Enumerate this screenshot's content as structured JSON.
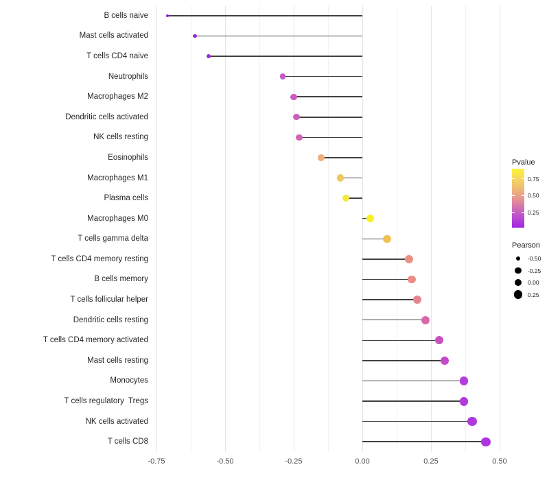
{
  "chart_data": {
    "type": "lollipop",
    "title": "",
    "xlabel": "",
    "ylabel": "",
    "orientation": "horizontal",
    "grid": "vertical major+minor, no horizontal, white panel",
    "xlim": [
      -0.7675,
      0.5075
    ],
    "x_ticks": [
      {
        "value": -0.75,
        "label": "-0.75"
      },
      {
        "value": -0.5,
        "label": "-0.50"
      },
      {
        "value": -0.25,
        "label": "-0.25"
      },
      {
        "value": 0.0,
        "label": "0.00"
      },
      {
        "value": 0.25,
        "label": "0.25"
      },
      {
        "value": 0.5,
        "label": "0.50"
      }
    ],
    "baseline": 0,
    "points": [
      {
        "label": "B cells naive",
        "pearson": -0.71,
        "color": "#8F22DC"
      },
      {
        "label": "Mast cells activated",
        "pearson": -0.61,
        "color": "#9527DD"
      },
      {
        "label": "T cells CD4 naive",
        "pearson": -0.56,
        "color": "#9B2BDC"
      },
      {
        "label": "Neutrophils",
        "pearson": -0.29,
        "color": "#C45BC8"
      },
      {
        "label": "Macrophages M2",
        "pearson": -0.25,
        "color": "#CB5BC0"
      },
      {
        "label": "Dendritic cells activated",
        "pearson": -0.24,
        "color": "#CD5EBB"
      },
      {
        "label": "NK cells resting",
        "pearson": -0.23,
        "color": "#D064B4"
      },
      {
        "label": "Eosinophils",
        "pearson": -0.15,
        "color": "#F0AD7E"
      },
      {
        "label": "Macrophages M1",
        "pearson": -0.08,
        "color": "#EEC75B"
      },
      {
        "label": "Plasma cells",
        "pearson": -0.06,
        "color": "#F4E63F"
      },
      {
        "label": "Macrophages M0",
        "pearson": 0.03,
        "color": "#F9F01F"
      },
      {
        "label": "T cells gamma delta",
        "pearson": 0.09,
        "color": "#F0C155"
      },
      {
        "label": "T cells CD4 memory resting",
        "pearson": 0.17,
        "color": "#EA9183"
      },
      {
        "label": "B cells memory",
        "pearson": 0.18,
        "color": "#E98E86"
      },
      {
        "label": "T cells follicular helper",
        "pearson": 0.2,
        "color": "#E48590"
      },
      {
        "label": "Dendritic cells resting",
        "pearson": 0.23,
        "color": "#D869A8"
      },
      {
        "label": "T cells CD4 memory activated",
        "pearson": 0.28,
        "color": "#CA50BF"
      },
      {
        "label": "Mast cells resting",
        "pearson": 0.3,
        "color": "#C348CC"
      },
      {
        "label": "Monocytes",
        "pearson": 0.37,
        "color": "#B33CDC"
      },
      {
        "label": "T cells regulatory  Tregs",
        "pearson": 0.37,
        "color": "#B23ADD"
      },
      {
        "label": "NK cells activated",
        "pearson": 0.4,
        "color": "#B038DE"
      },
      {
        "label": "T cells CD8",
        "pearson": 0.45,
        "color": "#AD33E0"
      }
    ]
  },
  "legend": {
    "pvalue": {
      "title": "Pvalue",
      "bar_domain": [
        0.02,
        0.9
      ],
      "gradient_bottom_to_top": [
        "#A125E4",
        "#C45DC6",
        "#E8988F",
        "#F3CB6B",
        "#FAF43C"
      ],
      "ticks": [
        {
          "value": 0.75,
          "label": "0.75"
        },
        {
          "value": 0.5,
          "label": "0.50"
        },
        {
          "value": 0.25,
          "label": "0.25"
        }
      ]
    },
    "pearson": {
      "title": "Pearson",
      "items": [
        {
          "value": -0.5,
          "label": "-0.50"
        },
        {
          "value": -0.25,
          "label": "-0.25"
        },
        {
          "value": 0.0,
          "label": "0.00"
        },
        {
          "value": 0.25,
          "label": "0.25"
        }
      ]
    }
  }
}
